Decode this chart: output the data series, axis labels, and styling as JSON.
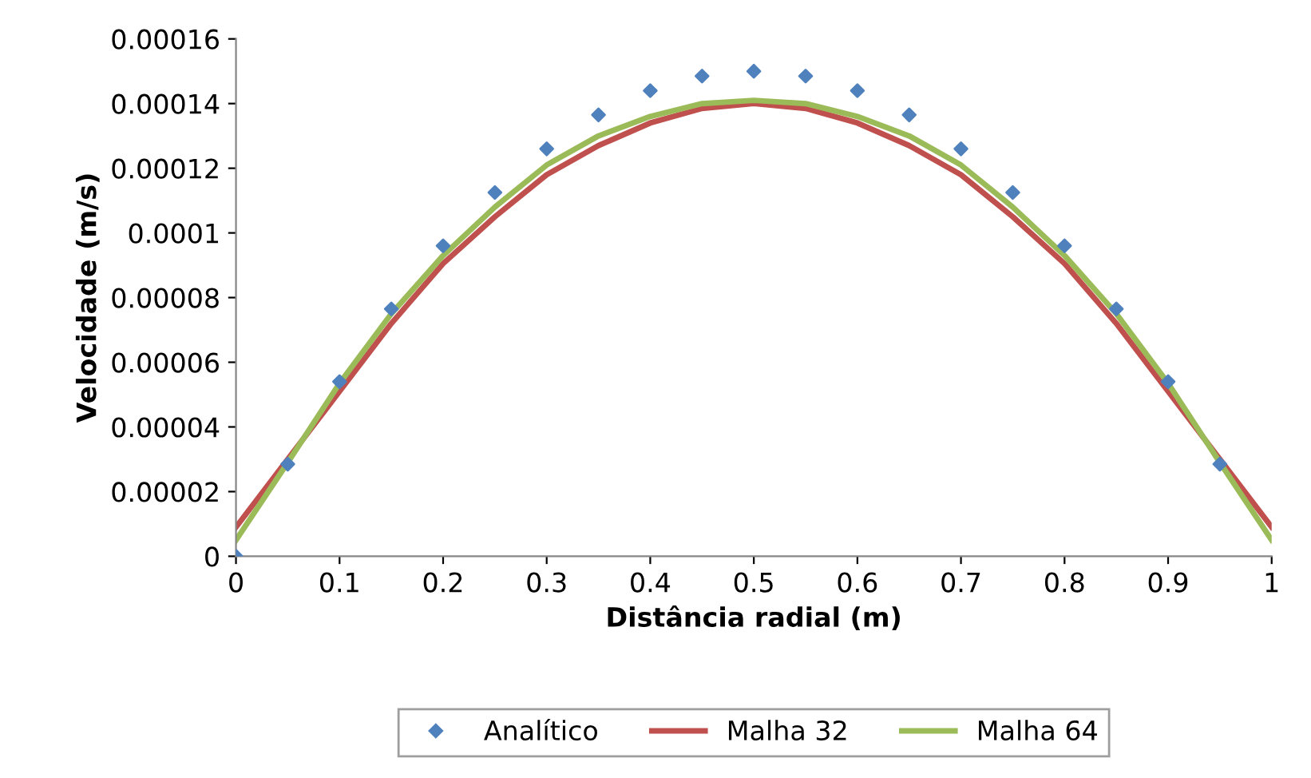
{
  "chart_data": {
    "type": "line",
    "xlabel": "Distância radial (m)",
    "ylabel": "Velocidade (m/s)",
    "x": [
      0,
      0.05,
      0.1,
      0.15,
      0.2,
      0.25,
      0.3,
      0.35,
      0.4,
      0.45,
      0.5,
      0.55,
      0.6,
      0.65,
      0.7,
      0.75,
      0.8,
      0.85,
      0.9,
      0.95,
      1
    ],
    "series": [
      {
        "name": "Analítico",
        "type": "scatter",
        "marker": "diamond",
        "color": "#4f81bd",
        "x": [
          0,
          0.05,
          0.1,
          0.15,
          0.2,
          0.25,
          0.3,
          0.35,
          0.4,
          0.45,
          0.5,
          0.55,
          0.6,
          0.65,
          0.7,
          0.75,
          0.8,
          0.85,
          0.9,
          0.95
        ],
        "values": [
          0,
          2.85e-05,
          5.4e-05,
          7.65e-05,
          9.6e-05,
          0.0001125,
          0.000126,
          0.0001365,
          0.000144,
          0.0001485,
          0.00015,
          0.0001485,
          0.000144,
          0.0001365,
          0.000126,
          0.0001125,
          9.6e-05,
          7.65e-05,
          5.4e-05,
          2.85e-05
        ]
      },
      {
        "name": "Malha 32",
        "color": "#c0504d",
        "values": [
          9e-06,
          3e-05,
          5.1e-05,
          7.2e-05,
          9.05e-05,
          0.000105,
          0.000118,
          0.000127,
          0.000134,
          0.0001385,
          0.00014,
          0.0001385,
          0.000134,
          0.000127,
          0.000118,
          0.000105,
          9.05e-05,
          7.2e-05,
          5.1e-05,
          3e-05,
          9e-06
        ]
      },
      {
        "name": "Malha 64",
        "color": "#9bbb59",
        "values": [
          5e-06,
          2.9e-05,
          5.35e-05,
          7.5e-05,
          9.3e-05,
          0.000108,
          0.000121,
          0.00013,
          0.000136,
          0.00014,
          0.000141,
          0.00014,
          0.000136,
          0.00013,
          0.000121,
          0.000108,
          9.3e-05,
          7.5e-05,
          5.35e-05,
          2.9e-05,
          5e-06
        ]
      }
    ],
    "line_style": "solid",
    "grid": false,
    "legend": "bottom",
    "xlim": [
      0,
      1
    ],
    "xticks": [
      0,
      0.1,
      0.2,
      0.3,
      0.4,
      0.5,
      0.6,
      0.7,
      0.8,
      0.9,
      1
    ],
    "ylim": [
      0,
      0.00016
    ],
    "yticks": [
      0,
      {
        "value": 2e-05,
        "label": "0.00002"
      },
      {
        "value": 4e-05,
        "label": "0.00004"
      },
      {
        "value": 6e-05,
        "label": "0.00006"
      },
      {
        "value": 8e-05,
        "label": "0.00008"
      },
      {
        "value": 0.0001,
        "label": "0.0001"
      },
      {
        "value": 0.00012,
        "label": "0.00012"
      },
      {
        "value": 0.00014,
        "label": "0.00014"
      },
      {
        "value": 0.00016,
        "label": "0.00016"
      }
    ]
  }
}
